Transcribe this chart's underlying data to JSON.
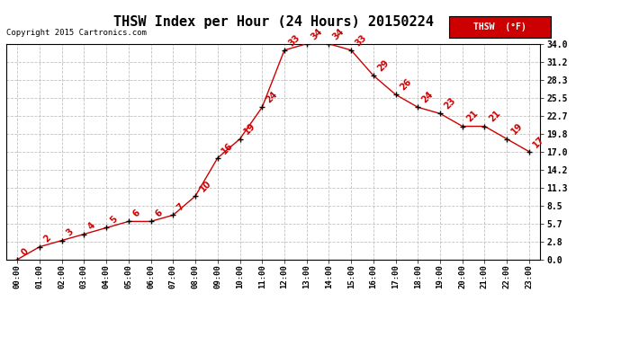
{
  "title": "THSW Index per Hour (24 Hours) 20150224",
  "copyright": "Copyright 2015 Cartronics.com",
  "legend_label": "THSW  (°F)",
  "hours": [
    "00:00",
    "01:00",
    "02:00",
    "03:00",
    "04:00",
    "05:00",
    "06:00",
    "07:00",
    "08:00",
    "09:00",
    "10:00",
    "11:00",
    "12:00",
    "13:00",
    "14:00",
    "15:00",
    "16:00",
    "17:00",
    "18:00",
    "19:00",
    "20:00",
    "21:00",
    "22:00",
    "23:00"
  ],
  "values": [
    0,
    2,
    3,
    4,
    5,
    6,
    6,
    7,
    10,
    16,
    19,
    24,
    33,
    34,
    34,
    33,
    29,
    26,
    24,
    23,
    21,
    21,
    19,
    17
  ],
  "yticks": [
    0.0,
    2.8,
    5.7,
    8.5,
    11.3,
    14.2,
    17.0,
    19.8,
    22.7,
    25.5,
    28.3,
    31.2,
    34.0
  ],
  "ylim": [
    0.0,
    34.0
  ],
  "line_color": "#cc0000",
  "marker_color": "#000000",
  "bg_color": "#ffffff",
  "grid_color": "#bbbbbb",
  "title_fontsize": 11,
  "annotation_fontsize": 7,
  "legend_bg": "#cc0000",
  "legend_fg": "#ffffff"
}
